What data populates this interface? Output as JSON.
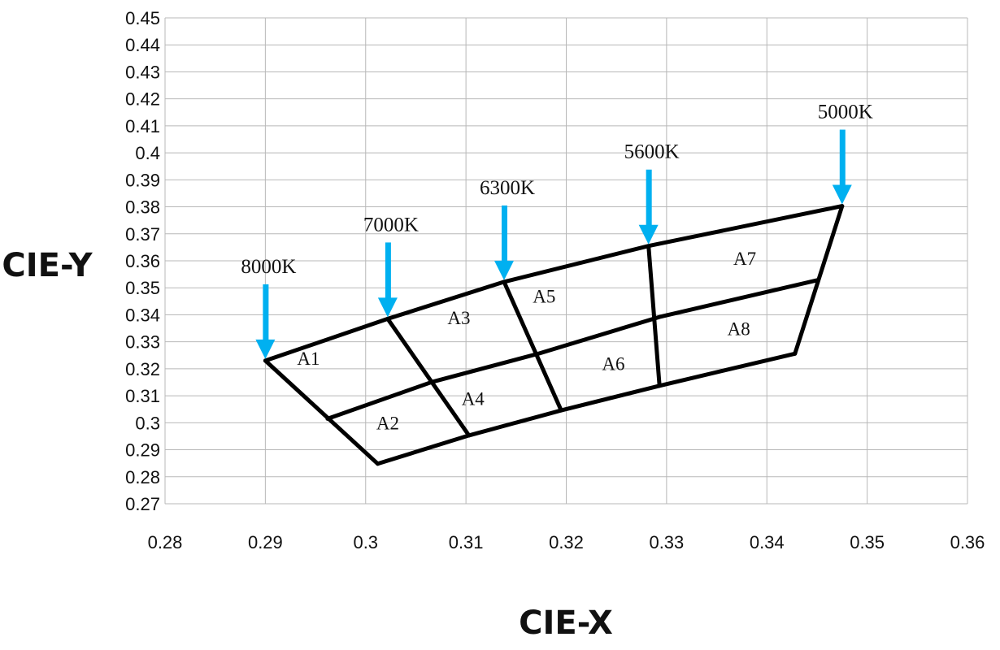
{
  "chart_data": {
    "type": "line",
    "xlabel": "CIE-X",
    "ylabel": "CIE-Y",
    "xlim": [
      0.28,
      0.36
    ],
    "ylim": [
      0.27,
      0.45
    ],
    "grid": true,
    "x_ticks": [
      "0.28",
      "0.29",
      "0.3",
      "0.31",
      "0.32",
      "0.33",
      "0.34",
      "0.35",
      "0.36"
    ],
    "y_ticks": [
      "0.45",
      "0.44",
      "0.43",
      "0.42",
      "0.41",
      "0.4",
      "0.39",
      "0.38",
      "0.37",
      "0.36",
      "0.35",
      "0.34",
      "0.33",
      "0.32",
      "0.31",
      "0.3",
      "0.29",
      "0.28",
      "0.27"
    ],
    "series": [
      {
        "points": [
          [
            0.29,
            0.323
          ],
          [
            0.3022,
            0.3385
          ],
          [
            0.3138,
            0.3522
          ],
          [
            0.3282,
            0.3655
          ],
          [
            0.3475,
            0.3803
          ]
        ]
      },
      {
        "points": [
          [
            0.2962,
            0.3015
          ],
          [
            0.3066,
            0.3151
          ],
          [
            0.3173,
            0.3257
          ],
          [
            0.3293,
            0.3392
          ],
          [
            0.345,
            0.3528
          ]
        ]
      },
      {
        "points": [
          [
            0.3012,
            0.2848
          ],
          [
            0.3103,
            0.2953
          ],
          [
            0.3195,
            0.3046
          ],
          [
            0.3293,
            0.3137
          ],
          [
            0.3428,
            0.3256
          ]
        ]
      },
      {
        "points": [
          [
            0.29,
            0.323
          ],
          [
            0.3012,
            0.2848
          ]
        ]
      },
      {
        "points": [
          [
            0.3022,
            0.3385
          ],
          [
            0.3103,
            0.2953
          ]
        ]
      },
      {
        "points": [
          [
            0.3138,
            0.3522
          ],
          [
            0.3195,
            0.3046
          ]
        ]
      },
      {
        "points": [
          [
            0.3282,
            0.3655
          ],
          [
            0.3293,
            0.3137
          ]
        ]
      },
      {
        "points": [
          [
            0.3475,
            0.3803
          ],
          [
            0.3428,
            0.3256
          ]
        ]
      }
    ],
    "regions": [
      {
        "label": "A1",
        "x": 0.2943,
        "y": 0.3215
      },
      {
        "label": "A2",
        "x": 0.3022,
        "y": 0.2975
      },
      {
        "label": "A3",
        "x": 0.3093,
        "y": 0.3365
      },
      {
        "label": "A4",
        "x": 0.3107,
        "y": 0.3065
      },
      {
        "label": "A5",
        "x": 0.3178,
        "y": 0.3445
      },
      {
        "label": "A6",
        "x": 0.3247,
        "y": 0.3195
      },
      {
        "label": "A7",
        "x": 0.3378,
        "y": 0.3585
      },
      {
        "label": "A8",
        "x": 0.3372,
        "y": 0.3325
      }
    ],
    "annotations": [
      {
        "label": "8000K",
        "x": 0.29,
        "y": 0.323
      },
      {
        "label": "7000K",
        "x": 0.3022,
        "y": 0.3385
      },
      {
        "label": "6300K",
        "x": 0.3138,
        "y": 0.3522
      },
      {
        "label": "5600K",
        "x": 0.3282,
        "y": 0.3655
      },
      {
        "label": "5000K",
        "x": 0.3475,
        "y": 0.3803
      }
    ],
    "arrow_color": "#00B0F0",
    "line_color": "#000000"
  }
}
